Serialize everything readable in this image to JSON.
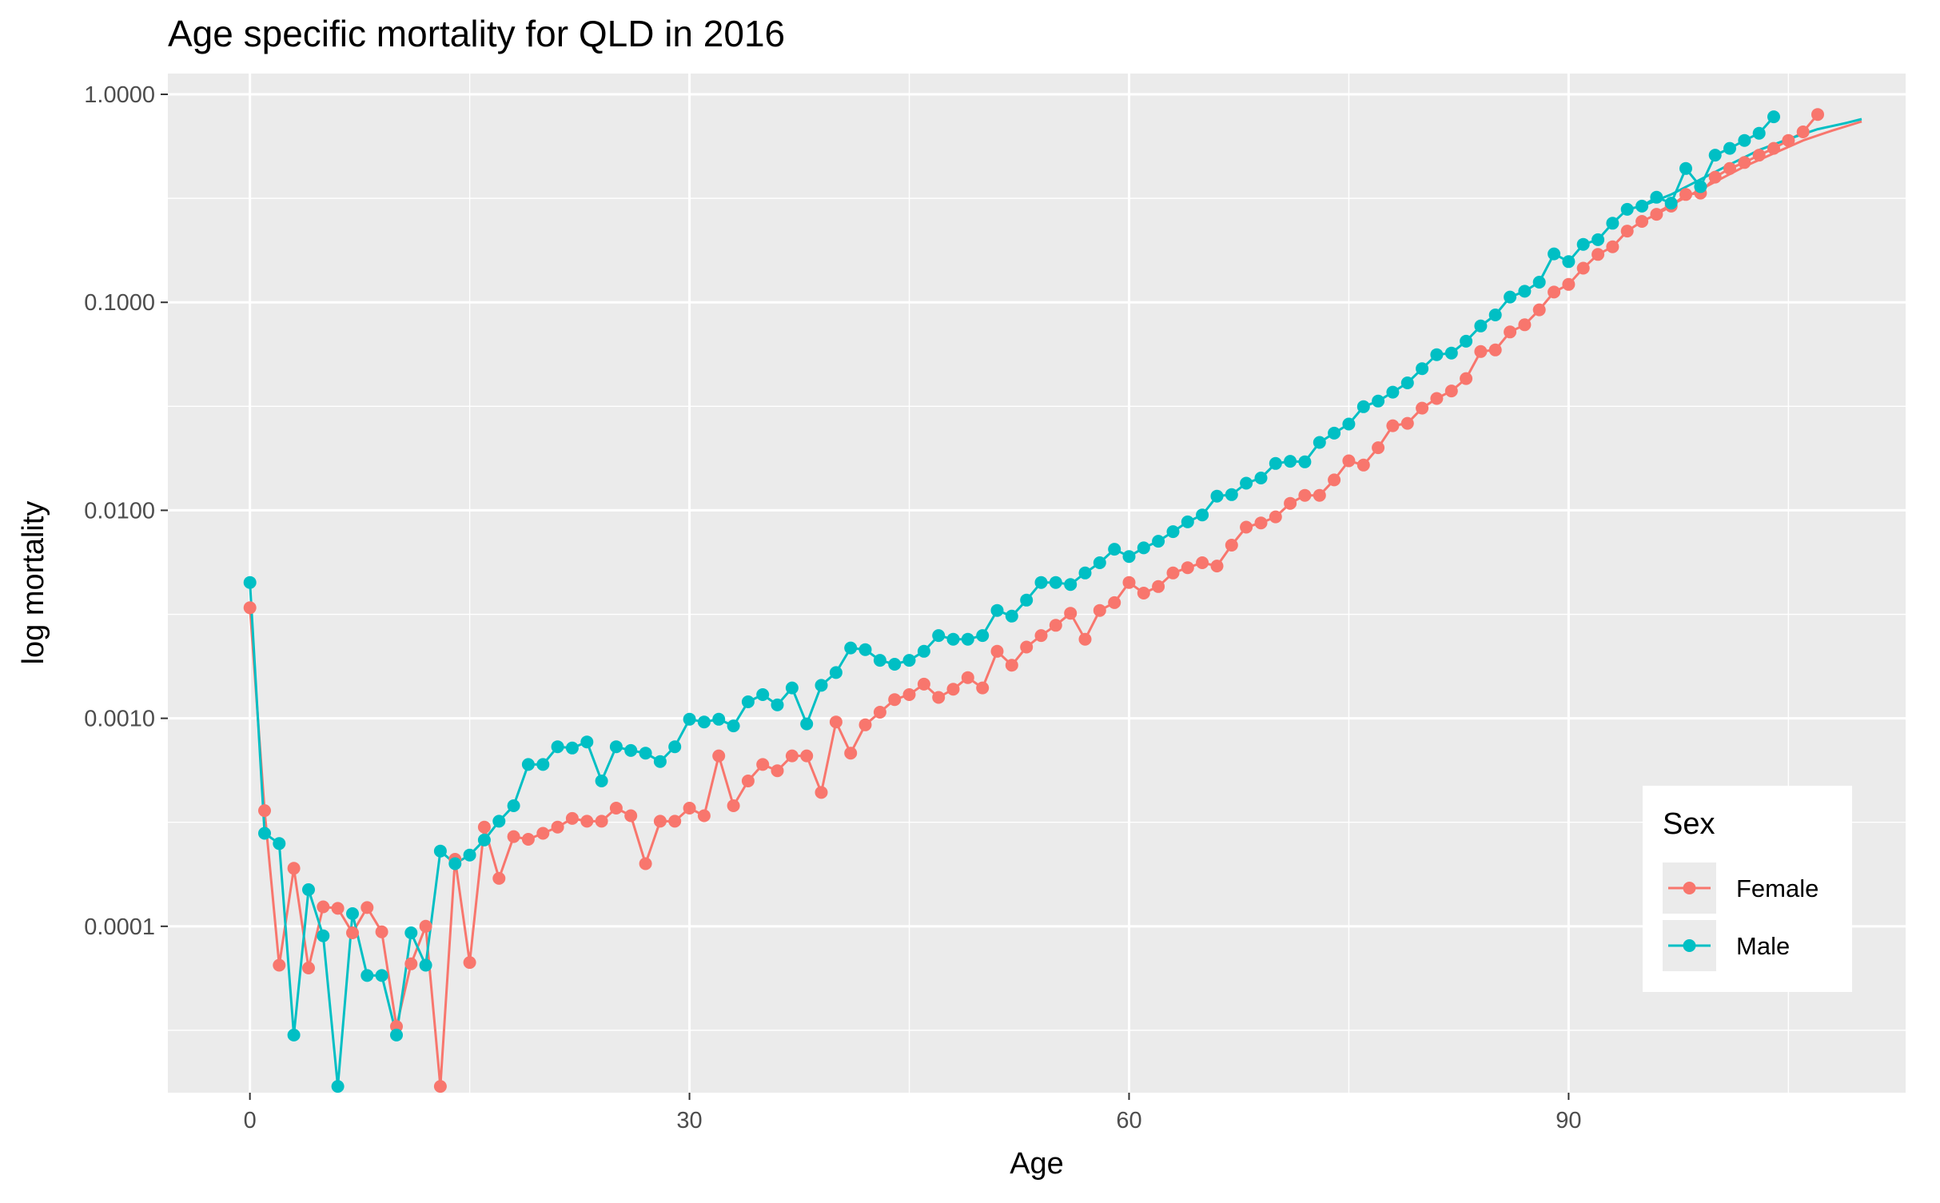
{
  "chart_data": {
    "type": "line",
    "title": "Age specific mortality for QLD in 2016",
    "xlabel": "Age",
    "ylabel": "log mortality",
    "xlim": [
      -5.6,
      113
    ],
    "ylim_log10": [
      -4.8,
      0.1
    ],
    "y_scale": "log10",
    "x_ticks": [
      0,
      30,
      60,
      90
    ],
    "x_tick_labels": [
      "0",
      "30",
      "60",
      "90"
    ],
    "y_ticks": [
      0.0001,
      0.001,
      0.01,
      0.1,
      1
    ],
    "y_tick_labels": [
      "0.0001",
      "0.0010",
      "0.0100",
      "0.1000",
      "1.0000"
    ],
    "grid": true,
    "panel_background": "#ebebeb",
    "legend": {
      "title": "Sex",
      "position": "right-inside-bottom",
      "entries": [
        "Female",
        "Male"
      ]
    },
    "series": [
      {
        "name": "Female",
        "color": "#F8766D",
        "points": [
          [
            0,
            0.0034
          ],
          [
            1,
            0.00036
          ],
          [
            2,
            6.5e-05
          ],
          [
            3,
            0.00019
          ],
          [
            4,
            6.3e-05
          ],
          [
            5,
            0.000124
          ],
          [
            6,
            0.000122
          ],
          [
            7,
            9.3e-05
          ],
          [
            8,
            0.000123
          ],
          [
            9,
            9.4e-05
          ],
          [
            10,
            3.3e-05
          ],
          [
            11,
            6.6e-05
          ],
          [
            12,
            0.0001
          ],
          [
            13,
            1.7e-05
          ],
          [
            14,
            0.00021
          ],
          [
            15,
            6.7e-05
          ],
          [
            16,
            0.0003
          ],
          [
            17,
            0.00017
          ],
          [
            18,
            0.00027
          ],
          [
            19,
            0.000262
          ],
          [
            20,
            0.00028
          ],
          [
            21,
            0.0003
          ],
          [
            22,
            0.00033
          ],
          [
            23,
            0.00032
          ],
          [
            24,
            0.00032
          ],
          [
            25,
            0.00037
          ],
          [
            26,
            0.00034
          ],
          [
            27,
            0.0002
          ],
          [
            28,
            0.00032
          ],
          [
            29,
            0.00032
          ],
          [
            30,
            0.00037
          ],
          [
            31,
            0.00034
          ],
          [
            32,
            0.00066
          ],
          [
            33,
            0.00038
          ],
          [
            34,
            0.0005
          ],
          [
            35,
            0.0006
          ],
          [
            36,
            0.00056
          ],
          [
            37,
            0.00066
          ],
          [
            38,
            0.00066
          ],
          [
            39,
            0.00044
          ],
          [
            40,
            0.00096
          ],
          [
            41,
            0.00068
          ],
          [
            42,
            0.00093
          ],
          [
            43,
            0.00107
          ],
          [
            44,
            0.00123
          ],
          [
            45,
            0.0013
          ],
          [
            46,
            0.00146
          ],
          [
            47,
            0.00126
          ],
          [
            48,
            0.00138
          ],
          [
            49,
            0.00157
          ],
          [
            50,
            0.0014
          ],
          [
            51,
            0.0021
          ],
          [
            52,
            0.0018
          ],
          [
            53,
            0.0022
          ],
          [
            54,
            0.0025
          ],
          [
            55,
            0.0028
          ],
          [
            56,
            0.0032
          ],
          [
            57,
            0.0024
          ],
          [
            58,
            0.0033
          ],
          [
            59,
            0.0036
          ],
          [
            60,
            0.0045
          ],
          [
            61,
            0.004
          ],
          [
            62,
            0.0043
          ],
          [
            63,
            0.005
          ],
          [
            64,
            0.0053
          ],
          [
            65,
            0.0056
          ],
          [
            66,
            0.0054
          ],
          [
            67,
            0.0068
          ],
          [
            68,
            0.0083
          ],
          [
            69,
            0.0087
          ],
          [
            70,
            0.0093
          ],
          [
            71,
            0.0108
          ],
          [
            72,
            0.0118
          ],
          [
            73,
            0.0118
          ],
          [
            74,
            0.014
          ],
          [
            75,
            0.0173
          ],
          [
            76,
            0.0165
          ],
          [
            77,
            0.02
          ],
          [
            78,
            0.0255
          ],
          [
            79,
            0.0262
          ],
          [
            80,
            0.031
          ],
          [
            81,
            0.0345
          ],
          [
            82,
            0.0375
          ],
          [
            83,
            0.043
          ],
          [
            84,
            0.058
          ],
          [
            85,
            0.059
          ],
          [
            86,
            0.072
          ],
          [
            87,
            0.078
          ],
          [
            88,
            0.092
          ],
          [
            89,
            0.112
          ],
          [
            90,
            0.122
          ],
          [
            91,
            0.146
          ],
          [
            92,
            0.17
          ],
          [
            93,
            0.185
          ],
          [
            94,
            0.22
          ],
          [
            95,
            0.245
          ],
          [
            96,
            0.265
          ],
          [
            97,
            0.29
          ],
          [
            98,
            0.33
          ],
          [
            99,
            0.335
          ],
          [
            100,
            0.4
          ],
          [
            101,
            0.44
          ],
          [
            102,
            0.47
          ],
          [
            103,
            0.51
          ],
          [
            104,
            0.55
          ],
          [
            105,
            0.6
          ],
          [
            106,
            0.66
          ],
          [
            107,
            0.8
          ]
        ],
        "smooth": [
          [
            96,
            0.27
          ],
          [
            98,
            0.32
          ],
          [
            100,
            0.38
          ],
          [
            102,
            0.45
          ],
          [
            104,
            0.52
          ],
          [
            106,
            0.6
          ],
          [
            108,
            0.67
          ],
          [
            110,
            0.74
          ]
        ]
      },
      {
        "name": "Male",
        "color": "#00BFC4",
        "points": [
          [
            0,
            0.0045
          ],
          [
            1,
            0.00028
          ],
          [
            2,
            0.00025
          ],
          [
            3,
            3e-05
          ],
          [
            4,
            0.00015
          ],
          [
            5,
            9e-05
          ],
          [
            6,
            1.7e-05
          ],
          [
            7,
            0.000115
          ],
          [
            8,
            5.8e-05
          ],
          [
            9,
            5.8e-05
          ],
          [
            10,
            3e-05
          ],
          [
            11,
            9.3e-05
          ],
          [
            12,
            6.5e-05
          ],
          [
            13,
            0.00023
          ],
          [
            14,
            0.0002
          ],
          [
            15,
            0.00022
          ],
          [
            16,
            0.00026
          ],
          [
            17,
            0.00032
          ],
          [
            18,
            0.00038
          ],
          [
            19,
            0.0006
          ],
          [
            20,
            0.0006
          ],
          [
            21,
            0.00073
          ],
          [
            22,
            0.00072
          ],
          [
            23,
            0.00077
          ],
          [
            24,
            0.0005
          ],
          [
            25,
            0.00073
          ],
          [
            26,
            0.0007
          ],
          [
            27,
            0.00068
          ],
          [
            28,
            0.00062
          ],
          [
            29,
            0.00073
          ],
          [
            30,
            0.00099
          ],
          [
            31,
            0.00096
          ],
          [
            32,
            0.00099
          ],
          [
            33,
            0.00092
          ],
          [
            34,
            0.0012
          ],
          [
            35,
            0.0013
          ],
          [
            36,
            0.00116
          ],
          [
            37,
            0.0014
          ],
          [
            38,
            0.00094
          ],
          [
            39,
            0.00144
          ],
          [
            40,
            0.00166
          ],
          [
            41,
            0.00218
          ],
          [
            42,
            0.00214
          ],
          [
            43,
            0.0019
          ],
          [
            44,
            0.00182
          ],
          [
            45,
            0.0019
          ],
          [
            46,
            0.0021
          ],
          [
            47,
            0.0025
          ],
          [
            48,
            0.0024
          ],
          [
            49,
            0.0024
          ],
          [
            50,
            0.0025
          ],
          [
            51,
            0.0033
          ],
          [
            52,
            0.0031
          ],
          [
            53,
            0.0037
          ],
          [
            54,
            0.0045
          ],
          [
            55,
            0.0045
          ],
          [
            56,
            0.0044
          ],
          [
            57,
            0.005
          ],
          [
            58,
            0.0056
          ],
          [
            59,
            0.0065
          ],
          [
            60,
            0.006
          ],
          [
            61,
            0.0066
          ],
          [
            62,
            0.0071
          ],
          [
            63,
            0.0079
          ],
          [
            64,
            0.0088
          ],
          [
            65,
            0.0095
          ],
          [
            66,
            0.0117
          ],
          [
            67,
            0.0119
          ],
          [
            68,
            0.0135
          ],
          [
            69,
            0.0143
          ],
          [
            70,
            0.0168
          ],
          [
            71,
            0.0172
          ],
          [
            72,
            0.0171
          ],
          [
            73,
            0.0212
          ],
          [
            74,
            0.0235
          ],
          [
            75,
            0.026
          ],
          [
            76,
            0.0315
          ],
          [
            77,
            0.0335
          ],
          [
            78,
            0.037
          ],
          [
            79,
            0.041
          ],
          [
            80,
            0.048
          ],
          [
            81,
            0.056
          ],
          [
            82,
            0.057
          ],
          [
            83,
            0.065
          ],
          [
            84,
            0.077
          ],
          [
            85,
            0.087
          ],
          [
            86,
            0.106
          ],
          [
            87,
            0.113
          ],
          [
            88,
            0.125
          ],
          [
            89,
            0.171
          ],
          [
            90,
            0.157
          ],
          [
            91,
            0.19
          ],
          [
            92,
            0.2
          ],
          [
            93,
            0.24
          ],
          [
            94,
            0.28
          ],
          [
            95,
            0.29
          ],
          [
            96,
            0.32
          ],
          [
            97,
            0.3
          ],
          [
            98,
            0.44
          ],
          [
            99,
            0.36
          ],
          [
            100,
            0.51
          ],
          [
            101,
            0.55
          ],
          [
            102,
            0.6
          ],
          [
            103,
            0.65
          ],
          [
            104,
            0.78
          ]
        ],
        "smooth": [
          [
            95,
            0.29
          ],
          [
            97,
            0.33
          ],
          [
            99,
            0.39
          ],
          [
            101,
            0.46
          ],
          [
            103,
            0.54
          ],
          [
            105,
            0.61
          ],
          [
            107,
            0.68
          ],
          [
            109,
            0.73
          ],
          [
            110,
            0.76
          ]
        ]
      }
    ]
  }
}
